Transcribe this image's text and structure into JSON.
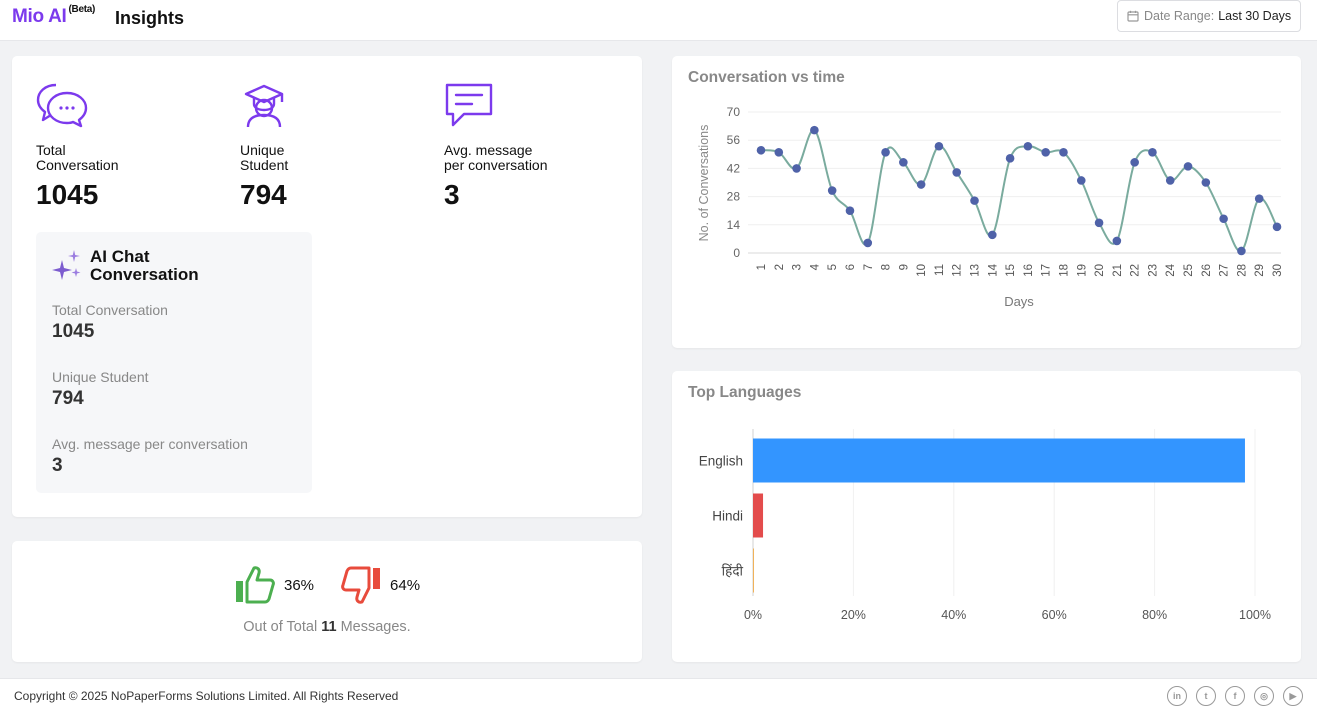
{
  "header": {
    "brand": "Mio AI",
    "brand_badge": "(Beta)",
    "title": "Insights",
    "date_range_label": "Date Range:",
    "date_range_value": "Last 30 Days",
    "icon": "calendar-icon"
  },
  "stats": [
    {
      "label": "Total\nConversation",
      "value": "1045",
      "icon": "chat-bubbles-icon"
    },
    {
      "label": "Unique\nStudent",
      "value": "794",
      "icon": "student-icon"
    },
    {
      "label": "Avg. message\nper conversation",
      "value": "3",
      "icon": "message-icon"
    }
  ],
  "ai_chat": {
    "title": "AI Chat\nConversation",
    "icon": "sparkles-icon",
    "items": [
      {
        "label": "Total Conversation",
        "value": "1045"
      },
      {
        "label": "Unique Student",
        "value": "794"
      },
      {
        "label": "Avg. message per conversation",
        "value": "3"
      }
    ]
  },
  "feedback": {
    "positive_pct": "36%",
    "negative_pct": "64%",
    "total_prefix": "Out of Total",
    "total_count": "11",
    "total_suffix": "Messages.",
    "positive_icon": "thumbs-up-icon",
    "negative_icon": "thumbs-down-icon"
  },
  "chart_data": [
    {
      "type": "line",
      "title": "Conversation vs time",
      "xlabel": "Days",
      "ylabel": "No. of Conversations",
      "x": [
        1,
        2,
        3,
        4,
        5,
        6,
        7,
        8,
        9,
        10,
        11,
        12,
        13,
        14,
        15,
        16,
        17,
        18,
        19,
        20,
        21,
        22,
        23,
        24,
        25,
        26,
        27,
        28,
        29,
        30
      ],
      "values": [
        51,
        50,
        42,
        61,
        31,
        21,
        5,
        50,
        45,
        34,
        53,
        40,
        26,
        9,
        47,
        53,
        50,
        50,
        36,
        15,
        6,
        45,
        50,
        36,
        43,
        35,
        17,
        1,
        27,
        13
      ],
      "yticks": [
        0,
        14,
        28,
        42,
        56,
        70
      ],
      "ylim": [
        0,
        70
      ],
      "grid": true,
      "color": "#7aab9e",
      "marker_color": "#4f62a8"
    },
    {
      "type": "bar",
      "orientation": "horizontal",
      "title": "Top Languages",
      "categories": [
        "English",
        "Hindi",
        "हिंदी"
      ],
      "values": [
        98,
        2,
        0.2
      ],
      "colors": [
        "#3395ff",
        "#e34c4c",
        "#f0b25a"
      ],
      "xticks": [
        "0%",
        "20%",
        "40%",
        "60%",
        "80%",
        "100%"
      ],
      "xlim": [
        0,
        100
      ],
      "grid": true
    }
  ],
  "footer": {
    "copyright": "Copyright © 2025 NoPaperForms Solutions Limited. All Rights Reserved",
    "socials": [
      {
        "name": "linkedin-icon",
        "glyph": "in"
      },
      {
        "name": "twitter-icon",
        "glyph": "t"
      },
      {
        "name": "facebook-icon",
        "glyph": "f"
      },
      {
        "name": "instagram-icon",
        "glyph": "◎"
      },
      {
        "name": "youtube-icon",
        "glyph": "▶"
      }
    ]
  }
}
